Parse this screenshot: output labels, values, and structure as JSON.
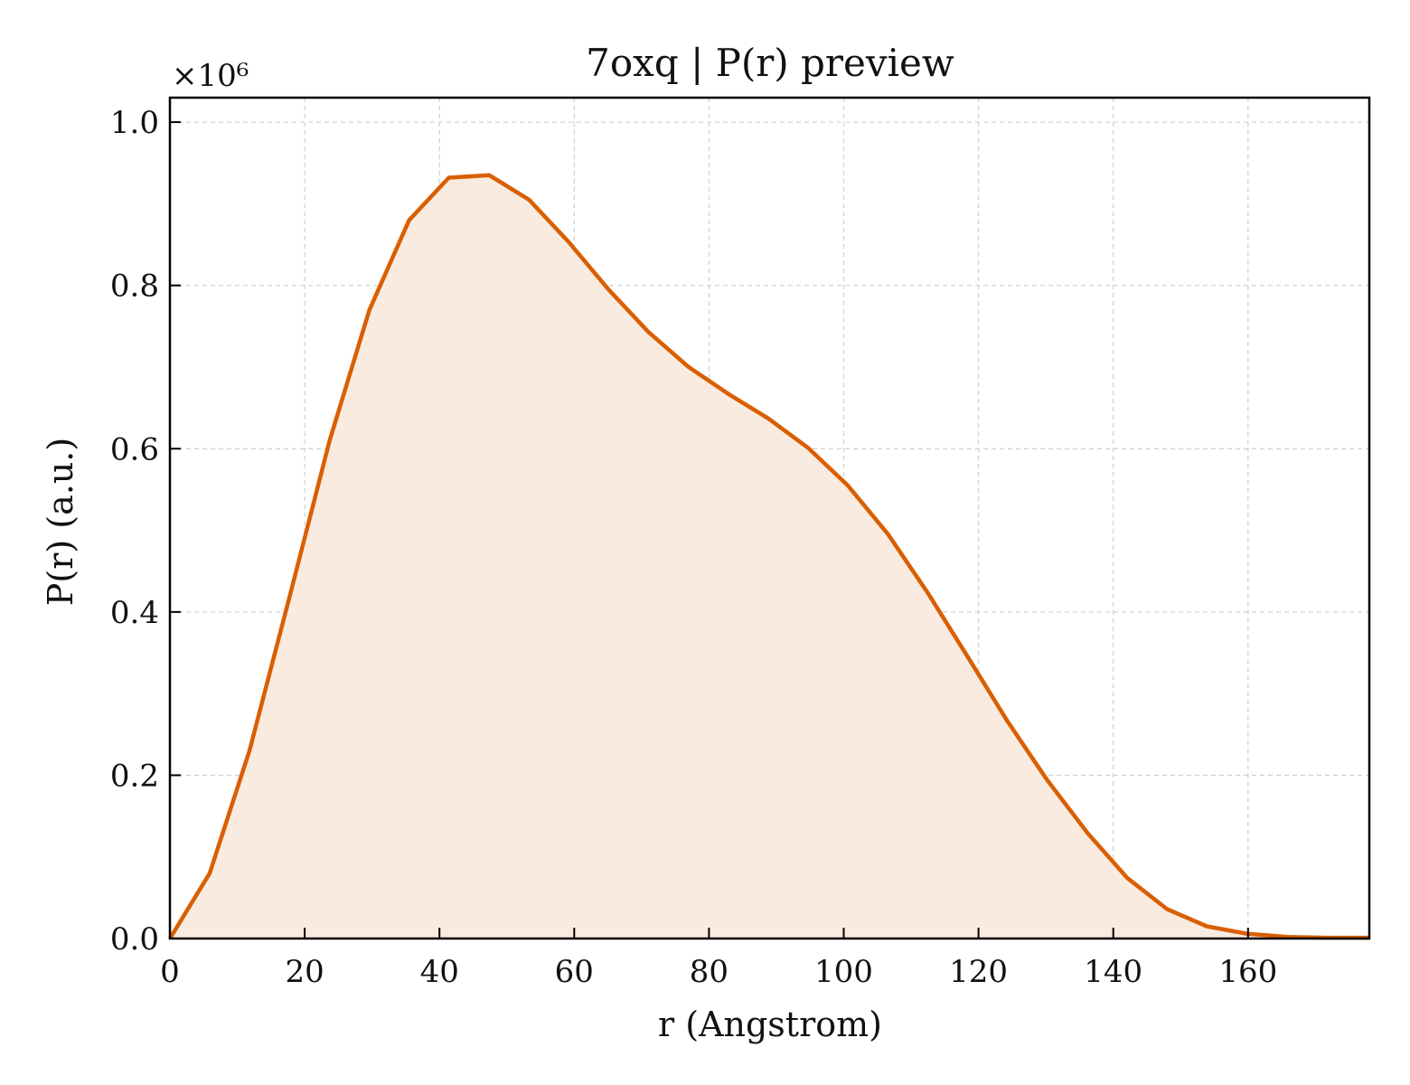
{
  "chart_data": {
    "type": "area",
    "title": "7oxq | P(r) preview",
    "xlabel": "r (Angstrom)",
    "ylabel": "P(r) (a.u.)",
    "y_offset_text": "×10⁶",
    "xlim": [
      0,
      178
    ],
    "ylim": [
      0,
      1.03
    ],
    "xticks": [
      0,
      20,
      40,
      60,
      80,
      100,
      120,
      140,
      160
    ],
    "yticks": [
      0.0,
      0.2,
      0.4,
      0.6,
      0.8,
      1.0
    ],
    "xtick_labels": [
      "0",
      "20",
      "40",
      "60",
      "80",
      "100",
      "120",
      "140",
      "160"
    ],
    "ytick_labels": [
      "0.0",
      "0.2",
      "0.4",
      "0.6",
      "0.8",
      "1.0"
    ],
    "grid": true,
    "line_color": "#d95f02",
    "fill_color": "#f9ebe0",
    "series": [
      {
        "x": [
          0,
          5.9,
          11.8,
          17.8,
          23.7,
          29.6,
          35.5,
          41.4,
          47.4,
          53.3,
          59.2,
          65.1,
          71.0,
          77.0,
          82.9,
          88.8,
          94.7,
          100.6,
          106.6,
          112.5,
          118.4,
          124.3,
          130.2,
          136.2,
          142.1,
          148.0,
          153.9,
          159.8,
          165.8,
          171.7,
          178.0
        ],
        "y": [
          0.0,
          0.08,
          0.23,
          0.42,
          0.61,
          0.77,
          0.88,
          0.932,
          0.935,
          0.905,
          0.853,
          0.795,
          0.743,
          0.7,
          0.667,
          0.637,
          0.601,
          0.555,
          0.495,
          0.423,
          0.345,
          0.266,
          0.194,
          0.129,
          0.074,
          0.036,
          0.015,
          0.006,
          0.002,
          0.001,
          0.001
        ]
      }
    ]
  }
}
